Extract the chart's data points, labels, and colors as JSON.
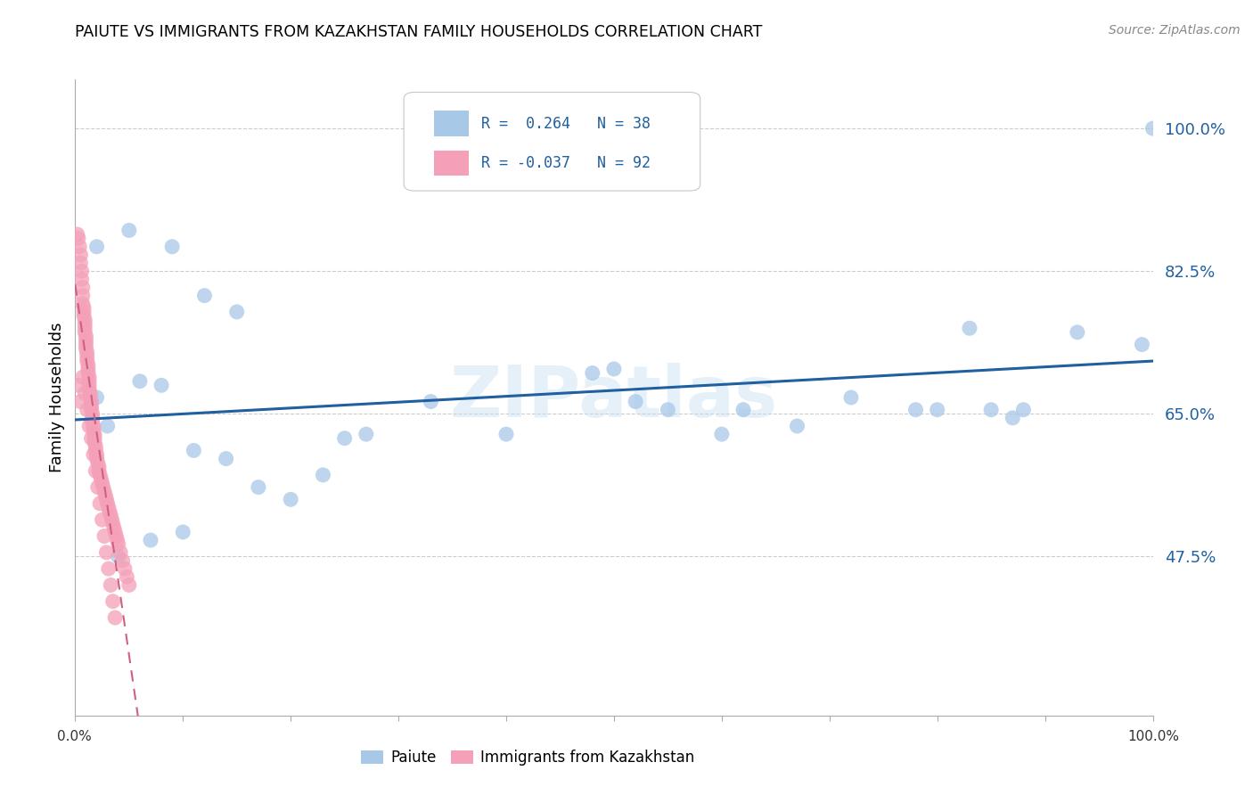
{
  "title": "PAIUTE VS IMMIGRANTS FROM KAZAKHSTAN FAMILY HOUSEHOLDS CORRELATION CHART",
  "source": "Source: ZipAtlas.com",
  "ylabel": "Family Households",
  "xlim": [
    0.0,
    1.0
  ],
  "ylim": [
    0.28,
    1.06
  ],
  "yticks": [
    0.475,
    0.65,
    0.825,
    1.0
  ],
  "ytick_labels": [
    "47.5%",
    "65.0%",
    "82.5%",
    "100.0%"
  ],
  "blue_color": "#a8c8e8",
  "pink_color": "#f4a0b8",
  "line_blue": "#2060a0",
  "line_pink": "#d06080",
  "watermark": "ZIPatlas",
  "blue_scatter_x": [
    0.02,
    0.05,
    0.09,
    0.12,
    0.15,
    0.02,
    0.03,
    0.06,
    0.08,
    0.11,
    0.14,
    0.17,
    0.2,
    0.23,
    0.27,
    0.33,
    0.4,
    0.5,
    0.52,
    0.55,
    0.62,
    0.67,
    0.72,
    0.78,
    0.83,
    0.87,
    0.93,
    0.99,
    0.1,
    0.04,
    0.07,
    1.0,
    0.48,
    0.6,
    0.8,
    0.85,
    0.88,
    0.25
  ],
  "blue_scatter_y": [
    0.855,
    0.875,
    0.855,
    0.795,
    0.775,
    0.67,
    0.635,
    0.69,
    0.685,
    0.605,
    0.595,
    0.56,
    0.545,
    0.575,
    0.625,
    0.665,
    0.625,
    0.705,
    0.665,
    0.655,
    0.655,
    0.635,
    0.67,
    0.655,
    0.755,
    0.645,
    0.75,
    0.735,
    0.505,
    0.475,
    0.495,
    1.0,
    0.7,
    0.625,
    0.655,
    0.655,
    0.655,
    0.62
  ],
  "pink_scatter_x": [
    0.002,
    0.003,
    0.004,
    0.005,
    0.005,
    0.006,
    0.006,
    0.007,
    0.007,
    0.007,
    0.008,
    0.008,
    0.008,
    0.009,
    0.009,
    0.009,
    0.009,
    0.01,
    0.01,
    0.01,
    0.01,
    0.011,
    0.011,
    0.011,
    0.012,
    0.012,
    0.012,
    0.013,
    0.013,
    0.013,
    0.013,
    0.014,
    0.014,
    0.015,
    0.015,
    0.015,
    0.016,
    0.016,
    0.016,
    0.017,
    0.017,
    0.018,
    0.018,
    0.018,
    0.019,
    0.019,
    0.02,
    0.02,
    0.021,
    0.022,
    0.022,
    0.023,
    0.024,
    0.025,
    0.026,
    0.027,
    0.028,
    0.029,
    0.03,
    0.031,
    0.032,
    0.033,
    0.034,
    0.035,
    0.036,
    0.037,
    0.038,
    0.039,
    0.04,
    0.042,
    0.044,
    0.046,
    0.048,
    0.05,
    0.003,
    0.005,
    0.007,
    0.009,
    0.011,
    0.013,
    0.015,
    0.017,
    0.019,
    0.021,
    0.023,
    0.025,
    0.027,
    0.029,
    0.031,
    0.033,
    0.035,
    0.037
  ],
  "pink_scatter_y": [
    0.87,
    0.865,
    0.855,
    0.845,
    0.835,
    0.825,
    0.815,
    0.805,
    0.795,
    0.785,
    0.78,
    0.775,
    0.77,
    0.765,
    0.76,
    0.755,
    0.75,
    0.745,
    0.74,
    0.735,
    0.73,
    0.725,
    0.72,
    0.715,
    0.71,
    0.705,
    0.7,
    0.695,
    0.69,
    0.685,
    0.68,
    0.675,
    0.67,
    0.665,
    0.66,
    0.655,
    0.65,
    0.645,
    0.64,
    0.635,
    0.63,
    0.625,
    0.62,
    0.615,
    0.61,
    0.605,
    0.6,
    0.595,
    0.59,
    0.585,
    0.58,
    0.575,
    0.57,
    0.565,
    0.56,
    0.555,
    0.55,
    0.545,
    0.54,
    0.535,
    0.53,
    0.525,
    0.52,
    0.515,
    0.51,
    0.505,
    0.5,
    0.495,
    0.49,
    0.48,
    0.47,
    0.46,
    0.45,
    0.44,
    0.685,
    0.665,
    0.695,
    0.675,
    0.655,
    0.635,
    0.62,
    0.6,
    0.58,
    0.56,
    0.54,
    0.52,
    0.5,
    0.48,
    0.46,
    0.44,
    0.42,
    0.4
  ]
}
